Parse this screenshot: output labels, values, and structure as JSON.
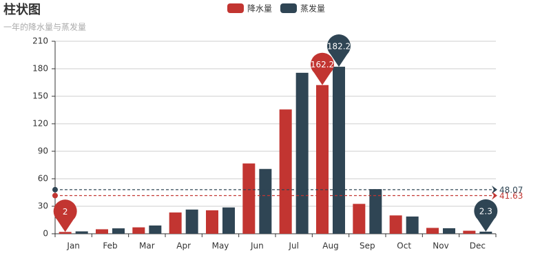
{
  "chart_data": {
    "type": "bar",
    "title": "柱状图",
    "subtitle": "一年的降水量与蒸发量",
    "categories": [
      "Jan",
      "Feb",
      "Mar",
      "Apr",
      "May",
      "Jun",
      "Jul",
      "Aug",
      "Sep",
      "Oct",
      "Nov",
      "Dec"
    ],
    "series": [
      {
        "name": "降水量",
        "color": "#c23531",
        "values": [
          2,
          4.9,
          7,
          23.2,
          25.6,
          76.7,
          135.6,
          162.2,
          32.6,
          20,
          6.4,
          3.3
        ],
        "mark_points": [
          162.2,
          2
        ],
        "mean_line": 41.63
      },
      {
        "name": "蒸发量",
        "color": "#2f4554",
        "values": [
          2.6,
          5.9,
          9,
          26.4,
          28.7,
          70.7,
          175.6,
          182.2,
          48.7,
          18.8,
          6,
          2.3
        ],
        "mark_points": [
          182.2,
          2.3
        ],
        "mean_line": 48.07
      }
    ],
    "ylim": [
      0,
      210
    ],
    "yticks": [
      0,
      30,
      60,
      90,
      120,
      150,
      180,
      210
    ],
    "grid": true
  }
}
